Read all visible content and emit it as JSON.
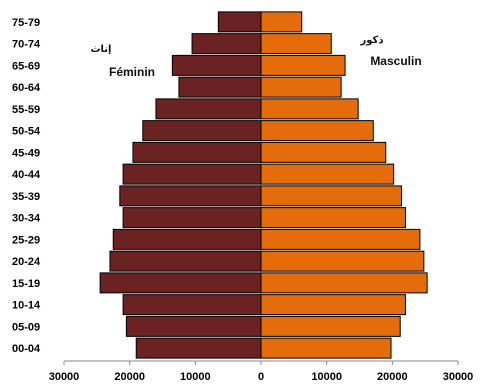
{
  "chart_data": {
    "type": "bar",
    "orientation": "horizontal",
    "subtype": "population-pyramid",
    "categories": [
      "00-04",
      "05-09",
      "10-14",
      "15-19",
      "20-24",
      "25-29",
      "30-34",
      "35-39",
      "40-44",
      "45-49",
      "50-54",
      "55-59",
      "60-64",
      "65-69",
      "70-74",
      "75-79"
    ],
    "series": [
      {
        "name": "Féminin",
        "name_ar": "إناث",
        "side": "left",
        "color": "#6B2222",
        "values": [
          19000,
          20500,
          21000,
          24500,
          23000,
          22500,
          21000,
          21500,
          21000,
          19500,
          18000,
          16000,
          12500,
          13500,
          10500,
          6500
        ]
      },
      {
        "name": "Masculin",
        "name_ar": "ذكور",
        "side": "right",
        "color": "#E46C0A",
        "values": [
          19800,
          21200,
          22000,
          25300,
          24800,
          24200,
          22000,
          21400,
          20200,
          19000,
          17100,
          14800,
          12200,
          12800,
          10700,
          6200
        ]
      }
    ],
    "xlim": [
      -30000,
      30000
    ],
    "x_ticks": [
      -30000,
      -20000,
      -10000,
      0,
      10000,
      20000,
      30000
    ],
    "x_tick_labels": [
      "30000",
      "20000",
      "10000",
      "0",
      "10000",
      "20000",
      "30000"
    ],
    "grid": false,
    "legend": "inline-top"
  }
}
